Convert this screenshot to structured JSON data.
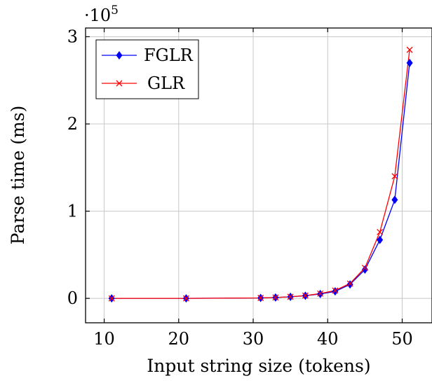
{
  "chart_data": {
    "type": "line",
    "title": "",
    "xlabel": "Input string size (tokens)",
    "ylabel": "Parse time (ms)",
    "y_scale_label": "·10",
    "y_scale_exponent": "5",
    "xlim": [
      7.5,
      54
    ],
    "ylim": [
      -28000,
      310000
    ],
    "x_ticks": [
      10,
      20,
      30,
      40,
      50
    ],
    "y_ticks": [
      0,
      100000,
      200000,
      300000
    ],
    "y_tick_labels": [
      "0",
      "1",
      "2",
      "3"
    ],
    "grid": true,
    "legend_position": "top-left",
    "series": [
      {
        "name": "FGLR",
        "color": "#0000ff",
        "marker": "diamond",
        "x": [
          11,
          21,
          31,
          33,
          35,
          37,
          39,
          41,
          43,
          45,
          47,
          49,
          51
        ],
        "y": [
          0,
          0,
          500,
          1000,
          1800,
          3000,
          5000,
          8000,
          16000,
          33000,
          67000,
          113000,
          270000
        ]
      },
      {
        "name": "GLR",
        "color": "#ff0000",
        "marker": "x",
        "x": [
          11,
          21,
          31,
          33,
          35,
          37,
          39,
          41,
          43,
          45,
          47,
          49,
          51
        ],
        "y": [
          0,
          0,
          500,
          1000,
          1800,
          3200,
          5500,
          9000,
          17000,
          35000,
          76000,
          140000,
          285000
        ]
      }
    ]
  }
}
